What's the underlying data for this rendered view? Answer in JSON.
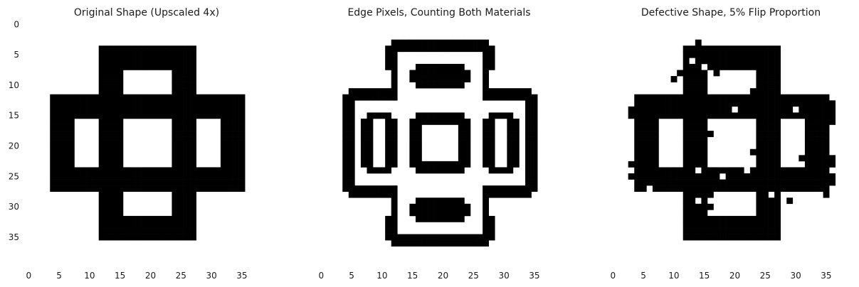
{
  "chart_data": [
    {
      "type": "heatmap",
      "title": "Original Shape (Upscaled 4x)",
      "grid_size": 40,
      "colormap": [
        "#ffffff",
        "#000000"
      ],
      "grid": false,
      "xticks": [
        "0",
        "5",
        "10",
        "15",
        "20",
        "25",
        "30",
        "35"
      ],
      "yticks": [
        "0",
        "5",
        "10",
        "15",
        "20",
        "25",
        "30",
        "35"
      ],
      "black_rects": [
        [
          12,
          4,
          16,
          4
        ],
        [
          12,
          4,
          4,
          32
        ],
        [
          24,
          4,
          4,
          32
        ],
        [
          12,
          32,
          16,
          4
        ],
        [
          4,
          12,
          32,
          4
        ],
        [
          4,
          24,
          32,
          4
        ],
        [
          4,
          12,
          4,
          16
        ],
        [
          32,
          12,
          4,
          16
        ]
      ],
      "white_flips": [],
      "black_flips": []
    },
    {
      "type": "heatmap",
      "title": "Edge Pixels, Counting Both Materials",
      "grid_size": 40,
      "colormap": [
        "#ffffff",
        "#000000"
      ],
      "grid": false,
      "xticks": [
        "0",
        "5",
        "10",
        "15",
        "20",
        "25",
        "30",
        "35"
      ],
      "yticks": [],
      "black_rects": [
        [
          12,
          3,
          16,
          1
        ],
        [
          11,
          4,
          1,
          4
        ],
        [
          28,
          4,
          1,
          4
        ],
        [
          12,
          36,
          16,
          1
        ],
        [
          11,
          32,
          1,
          4
        ],
        [
          28,
          32,
          1,
          4
        ],
        [
          5,
          11,
          7,
          1
        ],
        [
          28,
          11,
          7,
          1
        ],
        [
          5,
          28,
          7,
          1
        ],
        [
          28,
          28,
          7,
          1
        ],
        [
          4,
          12,
          1,
          16
        ],
        [
          35,
          12,
          1,
          16
        ],
        [
          16,
          7,
          8,
          1
        ],
        [
          16,
          10,
          8,
          1
        ],
        [
          15,
          8,
          1,
          2
        ],
        [
          24,
          8,
          1,
          2
        ],
        [
          16,
          29,
          8,
          1
        ],
        [
          16,
          32,
          8,
          1
        ],
        [
          15,
          30,
          1,
          2
        ],
        [
          24,
          30,
          1,
          2
        ],
        [
          16,
          15,
          8,
          1
        ],
        [
          16,
          24,
          8,
          1
        ],
        [
          15,
          16,
          1,
          8
        ],
        [
          24,
          16,
          1,
          8
        ],
        [
          8,
          15,
          4,
          1
        ],
        [
          8,
          24,
          4,
          1
        ],
        [
          7,
          16,
          1,
          8
        ],
        [
          12,
          16,
          1,
          8
        ],
        [
          28,
          15,
          4,
          1
        ],
        [
          28,
          24,
          4,
          1
        ],
        [
          27,
          16,
          1,
          8
        ],
        [
          32,
          16,
          1,
          8
        ],
        [
          12,
          4,
          16,
          1
        ],
        [
          12,
          35,
          16,
          1
        ],
        [
          12,
          4,
          1,
          8
        ],
        [
          27,
          4,
          1,
          8
        ],
        [
          12,
          28,
          1,
          8
        ],
        [
          27,
          28,
          1,
          8
        ],
        [
          5,
          12,
          8,
          1
        ],
        [
          27,
          12,
          8,
          1
        ],
        [
          5,
          27,
          8,
          1
        ],
        [
          27,
          27,
          8,
          1
        ],
        [
          5,
          12,
          1,
          16
        ],
        [
          34,
          12,
          1,
          16
        ],
        [
          16,
          8,
          8,
          1
        ],
        [
          16,
          9,
          8,
          1
        ],
        [
          16,
          30,
          8,
          1
        ],
        [
          16,
          31,
          8,
          1
        ],
        [
          16,
          16,
          8,
          1
        ],
        [
          16,
          23,
          8,
          1
        ],
        [
          16,
          16,
          1,
          8
        ],
        [
          23,
          16,
          1,
          8
        ],
        [
          8,
          16,
          1,
          8
        ],
        [
          11,
          16,
          1,
          8
        ],
        [
          28,
          16,
          1,
          8
        ],
        [
          31,
          16,
          1,
          8
        ]
      ],
      "white_flips": [],
      "black_flips": []
    },
    {
      "type": "heatmap",
      "title": "Defective Shape, 5% Flip Proportion",
      "grid_size": 40,
      "colormap": [
        "#ffffff",
        "#000000"
      ],
      "grid": false,
      "xticks": [
        "0",
        "5",
        "10",
        "15",
        "20",
        "25",
        "30",
        "35"
      ],
      "yticks": [],
      "black_rects": [
        [
          12,
          4,
          16,
          4
        ],
        [
          12,
          4,
          4,
          32
        ],
        [
          24,
          4,
          4,
          32
        ],
        [
          12,
          32,
          16,
          4
        ],
        [
          4,
          12,
          32,
          4
        ],
        [
          4,
          24,
          32,
          4
        ],
        [
          4,
          12,
          4,
          16
        ],
        [
          32,
          12,
          4,
          16
        ]
      ],
      "white_flips": [
        [
          15,
          7
        ],
        [
          16,
          20
        ],
        [
          14,
          24
        ],
        [
          22,
          24
        ],
        [
          26,
          28
        ],
        [
          14,
          29
        ],
        [
          11,
          18
        ],
        [
          18,
          25
        ],
        [
          26,
          21
        ],
        [
          30,
          14
        ],
        [
          6,
          27
        ],
        [
          13,
          6
        ],
        [
          20,
          14
        ]
      ],
      "black_flips": [
        [
          14,
          3
        ],
        [
          11,
          8
        ],
        [
          10,
          9
        ],
        [
          15,
          8
        ],
        [
          17,
          8
        ],
        [
          27,
          8
        ],
        [
          23,
          11
        ],
        [
          29,
          12
        ],
        [
          30,
          12
        ],
        [
          31,
          12
        ],
        [
          32,
          12
        ],
        [
          33,
          12
        ],
        [
          36,
          13
        ],
        [
          36,
          14
        ],
        [
          36,
          15
        ],
        [
          36,
          16
        ],
        [
          3,
          14
        ],
        [
          3,
          15
        ],
        [
          17,
          15
        ],
        [
          35,
          17
        ],
        [
          35,
          18
        ],
        [
          35,
          19
        ],
        [
          26,
          17
        ],
        [
          13,
          18
        ],
        [
          16,
          18
        ],
        [
          23,
          21
        ],
        [
          26,
          21
        ],
        [
          31,
          22
        ],
        [
          36,
          22
        ],
        [
          36,
          23
        ],
        [
          3,
          23
        ],
        [
          3,
          25
        ],
        [
          36,
          25
        ],
        [
          36,
          26
        ],
        [
          35,
          27
        ],
        [
          35,
          28
        ],
        [
          22,
          27
        ],
        [
          16,
          27
        ],
        [
          16,
          28
        ],
        [
          25,
          28
        ],
        [
          25,
          29
        ],
        [
          16,
          30
        ],
        [
          26,
          30
        ],
        [
          29,
          29
        ],
        [
          17,
          33
        ]
      ]
    }
  ]
}
